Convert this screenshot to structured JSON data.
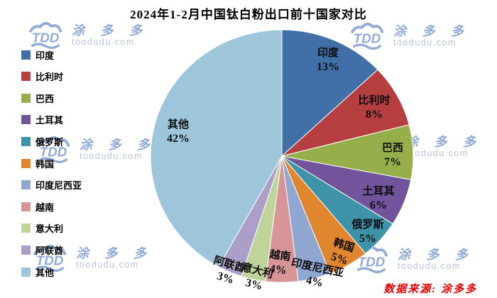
{
  "source_note": "数据来源: 涂多多",
  "watermark": {
    "logo_text": "TDD",
    "brand": "涂 多 多",
    "domain": "toodudu.com",
    "color": "#7e9cd0"
  },
  "chart_data": {
    "type": "pie",
    "title": "2024年1-2月中国钛白粉出口前十国家对比",
    "legend_position": "left",
    "unit": "%",
    "categories": [
      "印度",
      "比利时",
      "巴西",
      "土耳其",
      "俄罗斯",
      "韩国",
      "印度尼西亚",
      "越南",
      "意大利",
      "阿联酋",
      "其他"
    ],
    "values": [
      13,
      8,
      7,
      6,
      5,
      5,
      4,
      4,
      3,
      3,
      42
    ],
    "labels": [
      "13%",
      "8%",
      "7%",
      "6%",
      "5%",
      "5%",
      "4%",
      "4%",
      "3%",
      "3%",
      "42%"
    ],
    "colors": [
      "#416FA8",
      "#B43E40",
      "#97AF4B",
      "#71549B",
      "#3E93A9",
      "#E0862F",
      "#90A7D2",
      "#D79598",
      "#BFD49A",
      "#AB9EC9",
      "#9DC6DB"
    ],
    "start_angle_deg": 0,
    "direction": "clockwise"
  }
}
